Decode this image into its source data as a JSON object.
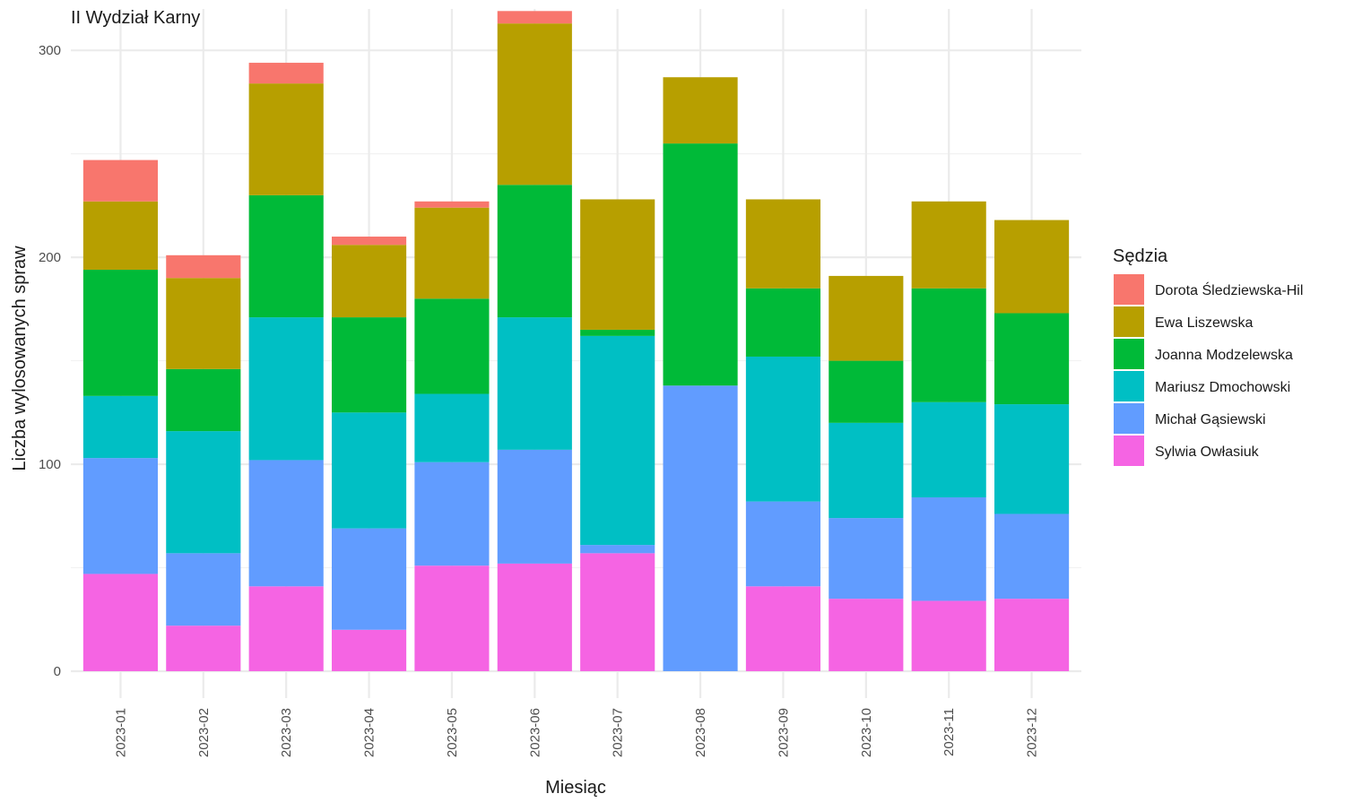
{
  "chart_data": {
    "type": "bar",
    "stacked": true,
    "title": "II Wydział Karny",
    "xlabel": "Miesiąc",
    "ylabel": "Liczba wylosowanych spraw",
    "ylim": [
      -13,
      320
    ],
    "yticks": [
      0,
      100,
      200,
      300
    ],
    "grid": true,
    "legend_position": "right",
    "legend_title": "Sędzia",
    "categories": [
      "2023-01",
      "2023-02",
      "2023-03",
      "2023-04",
      "2023-05",
      "2023-06",
      "2023-07",
      "2023-08",
      "2023-09",
      "2023-10",
      "2023-11",
      "2023-12"
    ],
    "series": [
      {
        "name": "Sylwia Owłasiuk",
        "color": "#F564E3",
        "values": [
          47,
          22,
          41,
          20,
          51,
          52,
          57,
          0,
          41,
          35,
          34,
          35
        ]
      },
      {
        "name": "Michał Gąsiewski",
        "color": "#619CFF",
        "values": [
          56,
          35,
          61,
          49,
          50,
          55,
          4,
          138,
          41,
          39,
          50,
          41
        ]
      },
      {
        "name": "Mariusz Dmochowski",
        "color": "#00BFC4",
        "values": [
          30,
          59,
          69,
          56,
          33,
          64,
          101,
          0,
          70,
          46,
          46,
          53
        ]
      },
      {
        "name": "Joanna Modzelewska",
        "color": "#00BA38",
        "values": [
          61,
          30,
          59,
          46,
          46,
          64,
          3,
          117,
          33,
          30,
          55,
          44
        ]
      },
      {
        "name": "Ewa Liszewska",
        "color": "#B79F00",
        "values": [
          33,
          44,
          54,
          35,
          44,
          78,
          63,
          32,
          43,
          41,
          42,
          45
        ]
      },
      {
        "name": "Dorota Śledziewska-Hil",
        "color": "#F8766D",
        "values": [
          20,
          11,
          10,
          4,
          3,
          6,
          0,
          0,
          0,
          0,
          0,
          0
        ]
      }
    ],
    "legend_order": [
      "Dorota Śledziewska-Hil",
      "Ewa Liszewska",
      "Joanna Modzelewska",
      "Mariusz Dmochowski",
      "Michał Gąsiewski",
      "Sylwia Owłasiuk"
    ]
  }
}
